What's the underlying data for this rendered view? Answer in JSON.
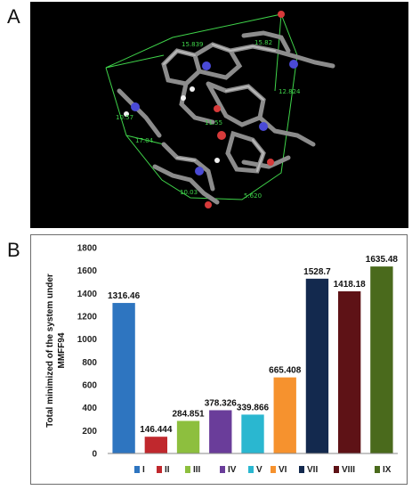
{
  "panel_a": {
    "letter": "A",
    "distance_labels": [
      "15.839",
      "15.82",
      "12.824",
      "10.57",
      "11.55",
      "17.04",
      "10.03",
      "5.620"
    ]
  },
  "panel_b": {
    "letter": "B"
  },
  "colors": {
    "I": "#2e75c0",
    "II": "#c0282d",
    "III": "#8dbf3e",
    "IV": "#6a3d9a",
    "V": "#2ab7d0",
    "VI": "#f6922e",
    "VII": "#13294e",
    "VIII": "#5e1216",
    "IX": "#4a6a1c"
  },
  "chart_data": {
    "type": "bar",
    "categories": [
      "I",
      "II",
      "III",
      "IV",
      "V",
      "VI",
      "VII",
      "VIII",
      "IX"
    ],
    "values": [
      1316.46,
      146.444,
      284.851,
      378.326,
      339.866,
      665.408,
      1528.7,
      1418.18,
      1635.48
    ],
    "value_labels": [
      "1316.46",
      "146.444",
      "284.851",
      "378.326",
      "339.866",
      "665.408",
      "1528.7",
      "1418.18",
      "1635.48"
    ],
    "title": "",
    "xlabel": "",
    "ylabel_line1": "Total minimized of the system under",
    "ylabel_line2": "MMFF94",
    "ylim": [
      0,
      1800
    ],
    "yticks": [
      "0",
      "200",
      "400",
      "600",
      "800",
      "1000",
      "1200",
      "1400",
      "1600",
      "1800"
    ],
    "grid": false,
    "legend_position": "bottom"
  }
}
